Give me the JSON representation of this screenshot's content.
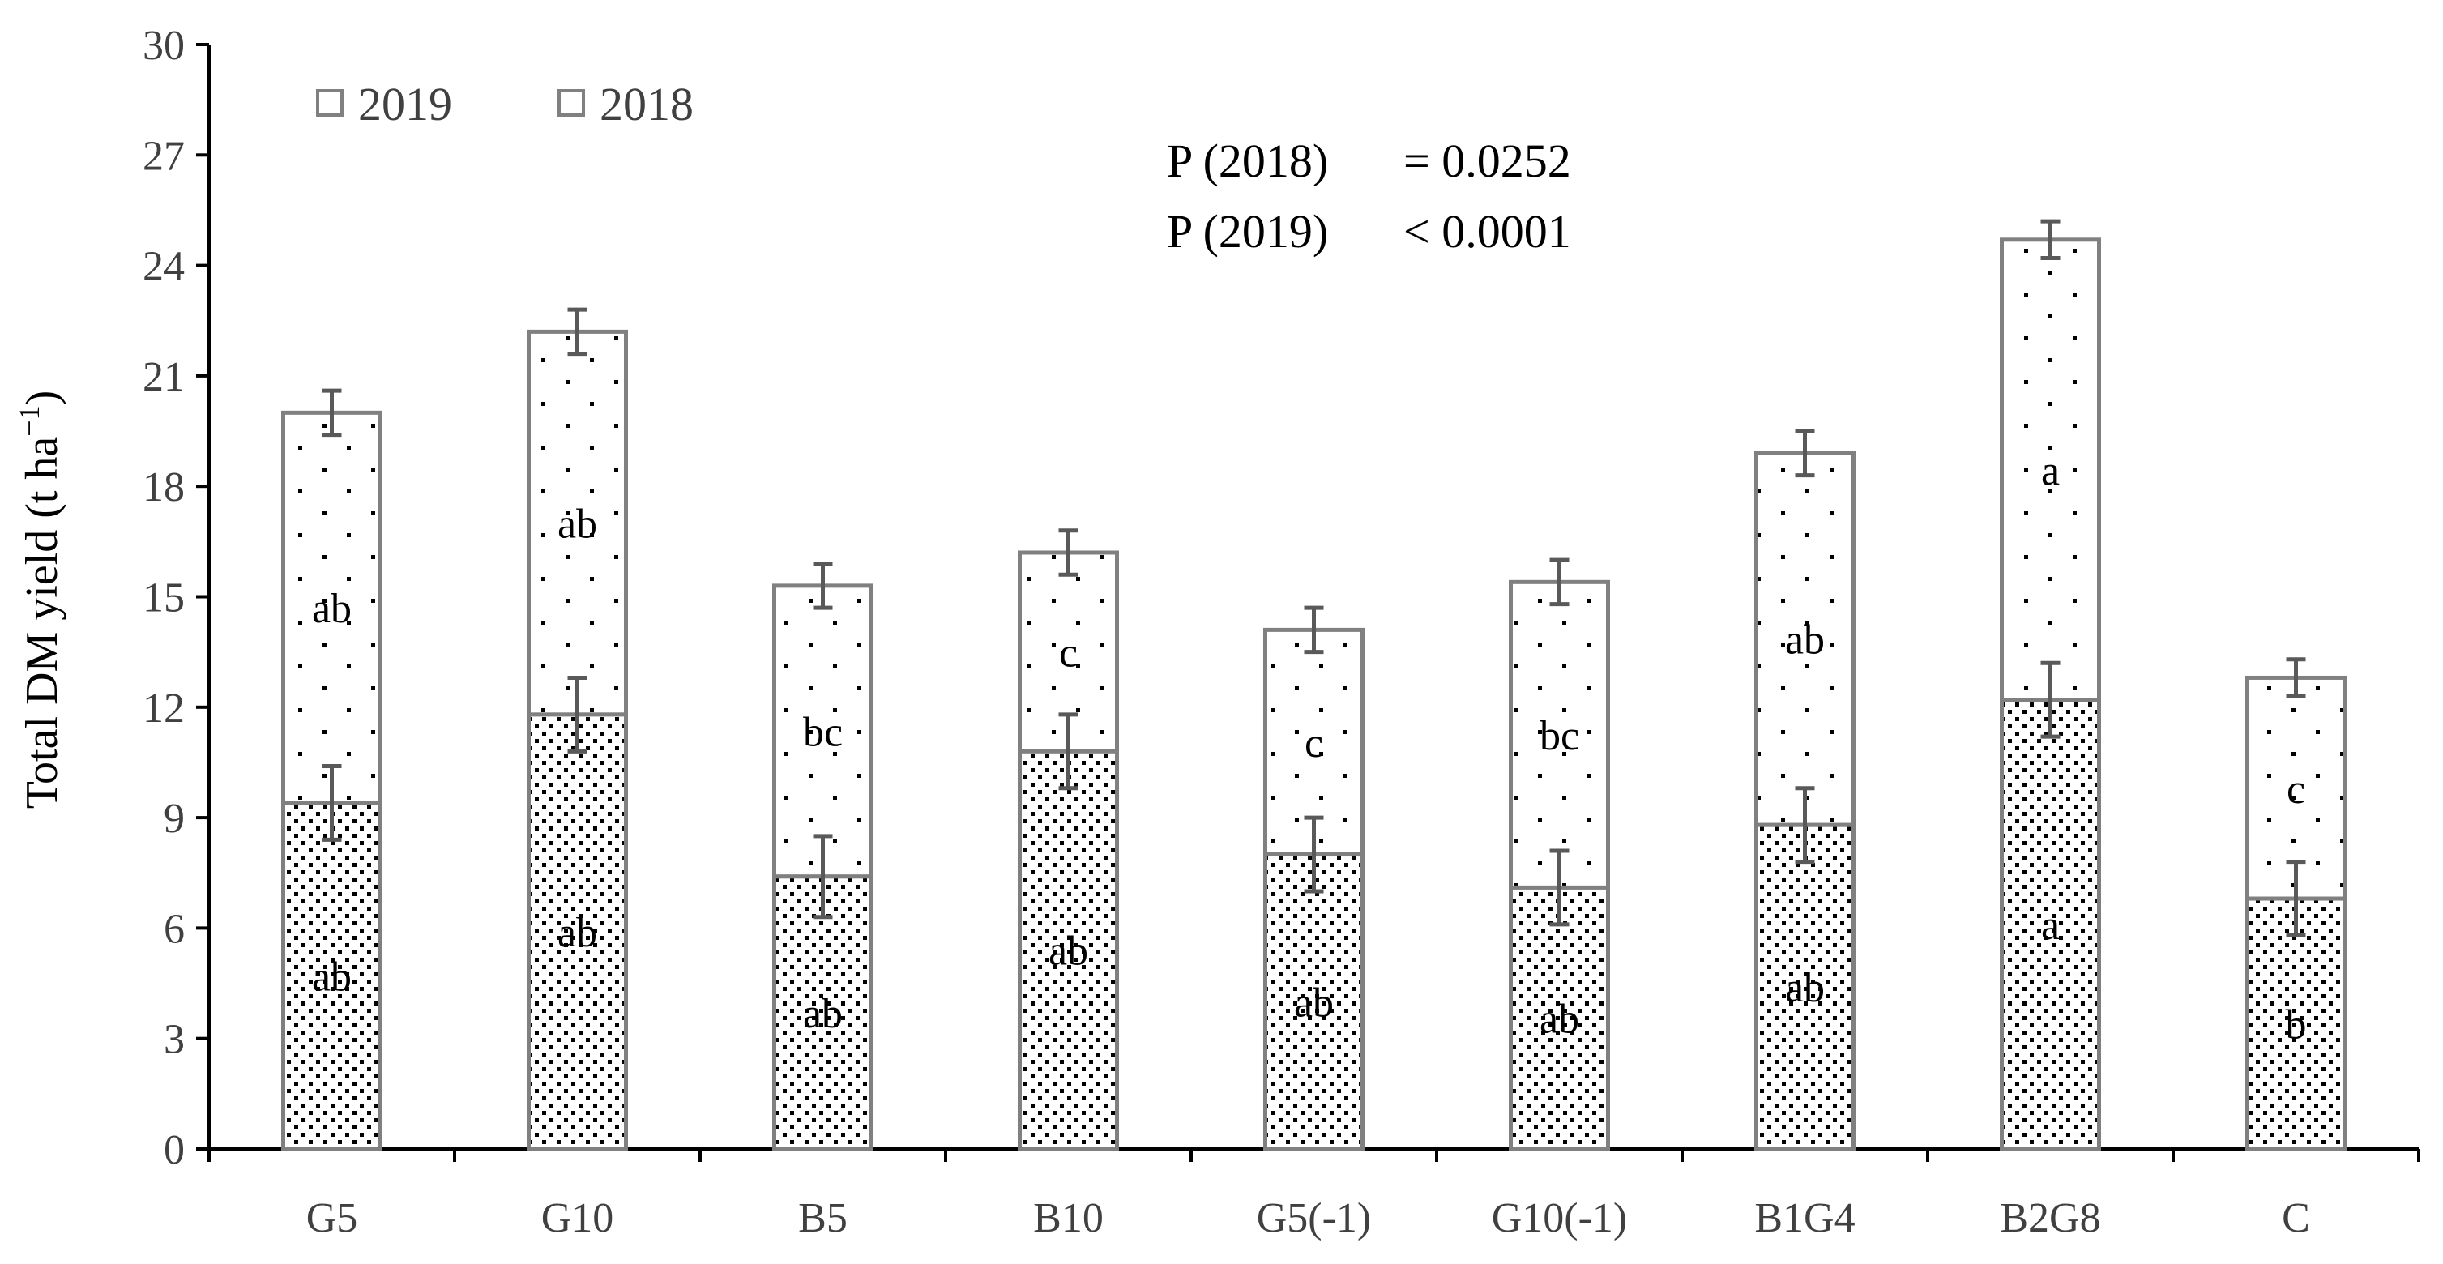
{
  "chart_data": {
    "type": "bar",
    "stacked": true,
    "title": "",
    "xlabel": "",
    "ylabel": "Total DM yield (t ha",
    "ylabel_sup": "−1",
    "ylabel_close": ")",
    "ylim": [
      0,
      30
    ],
    "yticks": [
      "0",
      "3",
      "6",
      "9",
      "12",
      "15",
      "18",
      "21",
      "24",
      "27",
      "30"
    ],
    "categories": [
      "G5",
      "G10",
      "B5",
      "B10",
      "G5(-1)",
      "G10(-1)",
      "B1G4",
      "B2G8",
      "C"
    ],
    "series": [
      {
        "name": "2018",
        "values": [
          9.4,
          11.8,
          7.4,
          10.8,
          8.0,
          7.1,
          8.8,
          12.2,
          6.8
        ],
        "errors": [
          1.0,
          1.0,
          1.1,
          1.0,
          1.0,
          1.0,
          1.0,
          1.0,
          1.0
        ],
        "letters": [
          "ab",
          "ab",
          "ab",
          "ab",
          "ab",
          "ab",
          "ab",
          "a",
          "b"
        ]
      },
      {
        "name": "2019",
        "values": [
          10.6,
          10.4,
          7.9,
          5.4,
          6.1,
          8.3,
          10.1,
          12.5,
          6.0
        ],
        "totals": [
          20.0,
          22.2,
          15.3,
          16.2,
          14.1,
          15.4,
          18.9,
          24.7,
          12.8
        ],
        "errors": [
          0.6,
          0.6,
          0.6,
          0.6,
          0.6,
          0.6,
          0.6,
          0.5,
          0.5
        ],
        "letters": [
          "ab",
          "ab",
          "bc",
          "c",
          "c",
          "bc",
          "ab",
          "a",
          "c"
        ]
      }
    ],
    "legend": {
      "position": "top-left",
      "entries": [
        "2019",
        "2018"
      ]
    },
    "annotations": [
      {
        "label": "P  (2018)",
        "value": "= 0.0252"
      },
      {
        "label": "P  (2019)",
        "value": "< 0.0001"
      }
    ],
    "colors": {
      "bar_edge": "#808080",
      "axis": "#000000",
      "dots": "#000000",
      "error_bar": "#595959"
    }
  }
}
